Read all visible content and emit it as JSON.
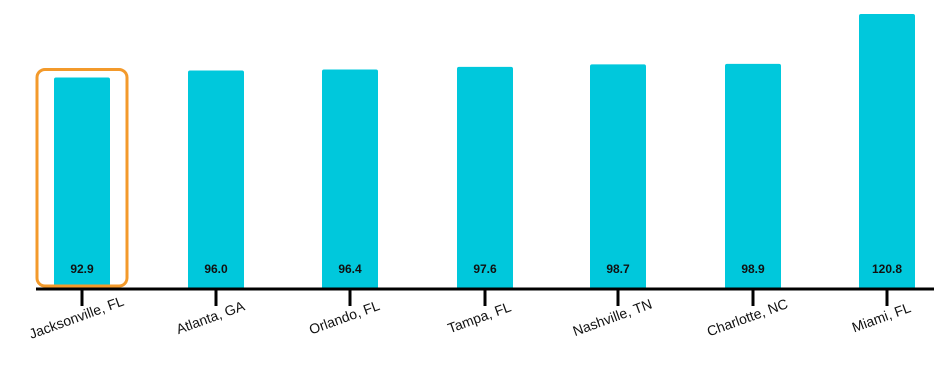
{
  "chart_data": {
    "type": "bar",
    "categories": [
      "Jacksonville, FL",
      "Atlanta, GA",
      "Orlando, FL",
      "Tampa, FL",
      "Nashville, TN",
      "Charlotte, NC",
      "Miami, FL"
    ],
    "values": [
      92.9,
      96.0,
      96.4,
      97.6,
      98.7,
      98.9,
      120.8
    ],
    "value_labels": [
      "92.9",
      "96.0",
      "96.4",
      "97.6",
      "98.7",
      "98.9",
      "120.8"
    ],
    "highlighted_category": "Jacksonville, FL",
    "title": "",
    "xlabel": "",
    "ylabel": "",
    "ylim": [
      0,
      123
    ],
    "grid": false,
    "colors": {
      "bar": "#00C8DC",
      "highlight": "#F39A2B",
      "axis": "#000000",
      "text": "#111111"
    }
  }
}
